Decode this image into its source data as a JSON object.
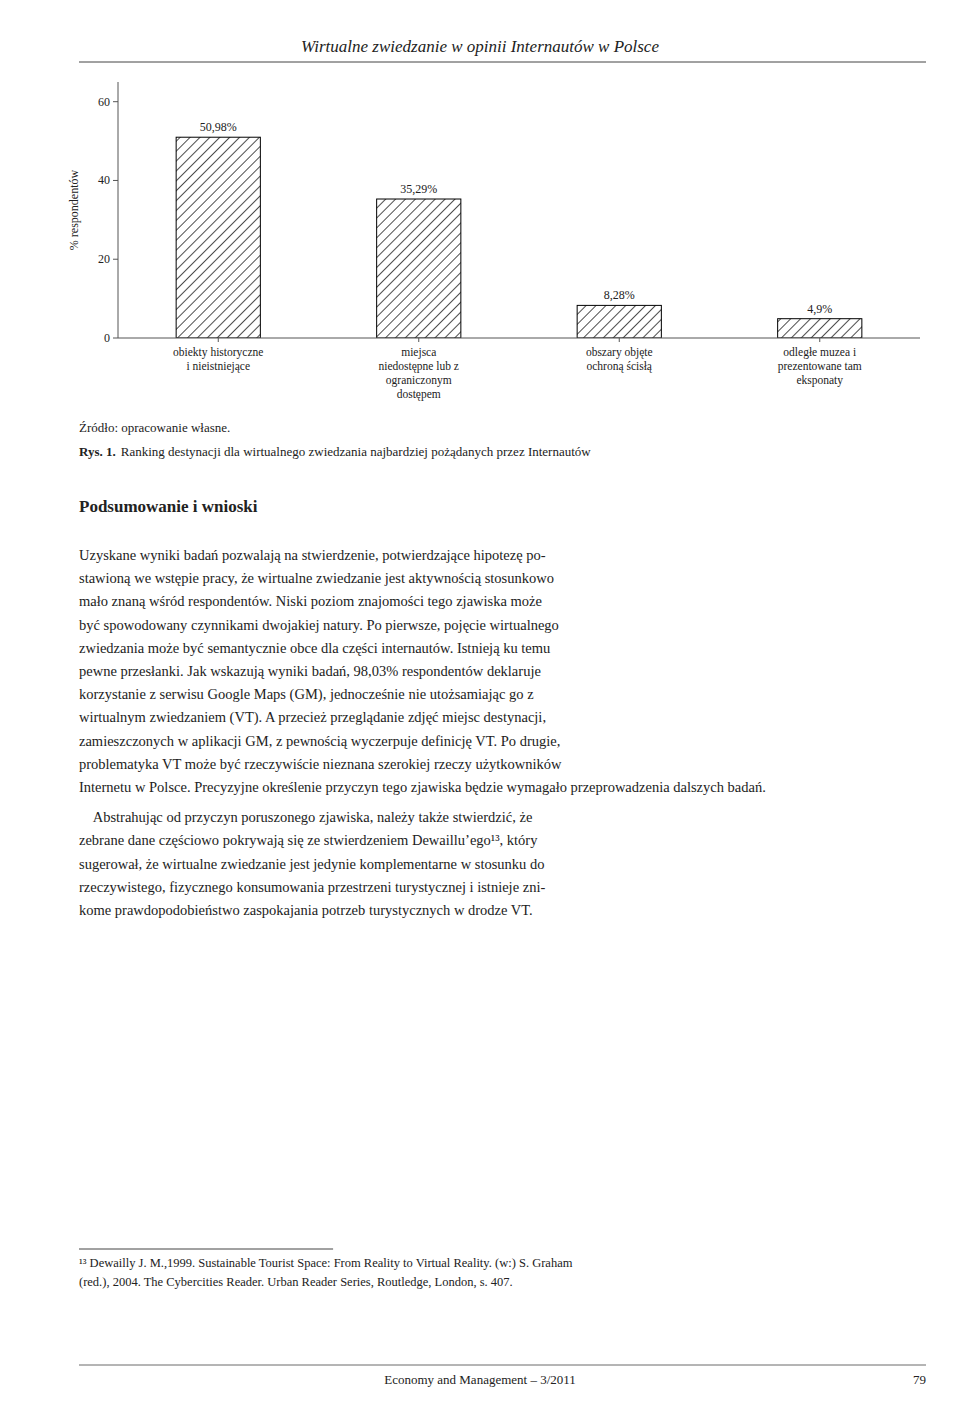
{
  "chart_data": {
    "type": "bar",
    "caption_label": "Rys. 1.",
    "caption": "Ranking destynacji dla wirtualnego zwiedzania najbardziej pożądanych przez Internautów",
    "source": "Źródło: opracowanie własne.",
    "categories": [
      "obiekty historyczne\ni nieistniejące",
      "miejsca\nniedostępne lub z\nograniczonym\ndostępem",
      "obszary objęte\nochroną ścisłą",
      "odległe muzea i\nprezentowane tam\neksponaty"
    ],
    "values": [
      50.98,
      35.29,
      8.28,
      4.9
    ],
    "value_labels": [
      "50,98%",
      "35,29%",
      "8,28%",
      "4,9%"
    ],
    "data_labels": true,
    "ylabel": "% respondentów",
    "ylim": [
      0,
      65
    ],
    "yticks": [
      0,
      20,
      40,
      60
    ],
    "color": "#000000",
    "grid": false
  },
  "page": {
    "header": "Wirtualne zwiedzanie w opinii Internautów w Polsce",
    "section_title": "Podsumowanie i wnioski",
    "paragraphs": [
      [
        "Uzyskane wyniki badań pozwalają na stwierdzenie, potwierdzające hipotezę po-",
        "stawioną we wstępie pracy, że wirtualne zwiedzanie jest aktywnością stosunkowo",
        "mało znaną wśród respondentów. Niski poziom znajomości tego zjawiska może",
        "być spowodowany czynnikami dwojakiej natury. Po pierwsze, pojęcie wirtualnego",
        "zwiedzania może być semantycznie obce dla części internautów. Istnieją ku temu",
        "pewne przesłanki. Jak wskazują wyniki badań, 98,03% respondentów deklaruje",
        "korzystanie z serwisu Google Maps (GM), jednocześnie nie utożsamiając go z",
        "wirtualnym zwiedzaniem (VT). A przecież przeglądanie zdjęć miejsc destynacji,",
        "zamieszczonych w aplikacji GM, z pewnością wyczerpuje definicję VT. Po drugie,",
        "problematyka VT może być rzeczywiście nieznana szerokiej rzeczy użytkowników",
        "Internetu w Polsce. Precyzyjne określenie przyczyn tego zjawiska będzie wymagało przeprowadzenia dalszych badań."
      ],
      [
        "    Abstrahując od przyczyn poruszonego zjawiska, należy także stwierdzić, że",
        "zebrane dane częściowo pokrywają się ze stwierdzeniem Dewaillu’ego¹³, który",
        "sugerował, że wirtualne zwiedzanie jest jedynie komplementarne w stosunku do",
        "rzeczywistego, fizycznego konsumowania przestrzeni turystycznej i istnieje zni-",
        "kome prawdopodobieństwo zaspokajania potrzeb turystycznych w drodze VT."
      ]
    ],
    "footnotes": [
      "¹³ Dewailly J. M.,1999. Sustainable Tourist Space: From Reality to Virtual Reality. (w:) S. Graham",
      "(red.), 2004. The Cybercities Reader. Urban Reader Series, Routledge, London, s. 407."
    ],
    "footer_text": "Economy and Management – 3/2011",
    "footer_page": "79"
  }
}
